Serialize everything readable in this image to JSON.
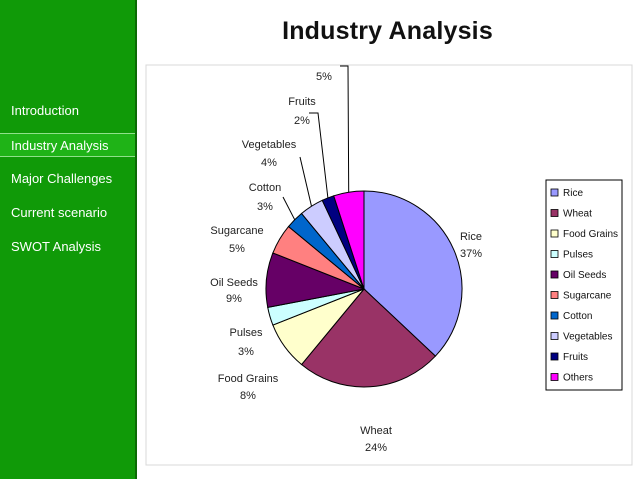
{
  "slide": {
    "title": "Industry Analysis"
  },
  "sidebar": {
    "items": [
      {
        "label": "Introduction",
        "active": false
      },
      {
        "label": "Industry Analysis",
        "active": true
      },
      {
        "label": "Major Challenges",
        "active": false
      },
      {
        "label": "Current  scenario",
        "active": false
      },
      {
        "label": "SWOT Analysis",
        "active": false
      }
    ]
  },
  "chart_data": {
    "type": "pie",
    "categories": [
      "Rice",
      "Wheat",
      "Food Grains",
      "Pulses",
      "Oil Seeds",
      "Sugarcane",
      "Cotton",
      "Vegetables",
      "Fruits",
      "Others"
    ],
    "values": [
      37,
      24,
      8,
      3,
      9,
      5,
      3,
      4,
      2,
      5
    ],
    "value_labels": [
      "37%",
      "24%",
      "8%",
      "3%",
      "9%",
      "5%",
      "3%",
      "4%",
      "2%",
      "5%"
    ],
    "colors": [
      "#9999ff",
      "#993366",
      "#ffffcc",
      "#ccffff",
      "#660066",
      "#ff8080",
      "#0066cc",
      "#ccccff",
      "#000080",
      "#ff00ff"
    ],
    "legend": {
      "placement": "right",
      "entries": [
        "Rice",
        "Wheat",
        "Food Grains",
        "Pulses",
        "Oil Seeds",
        "Sugarcane",
        "Cotton",
        "Vegetables",
        "Fruits",
        "Others"
      ]
    }
  }
}
